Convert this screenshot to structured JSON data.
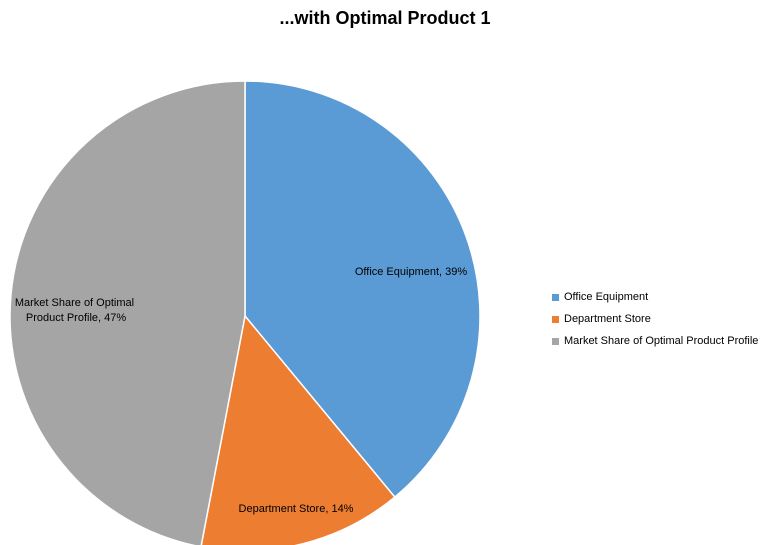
{
  "chart_data": {
    "type": "pie",
    "title": "...with Optimal Product 1",
    "slices": [
      {
        "name": "Office Equipment",
        "value": 39,
        "label": "Office Equipment, 39%",
        "color": "#5B9BD5"
      },
      {
        "name": "Department Store",
        "value": 14,
        "label": "Department Store, 14%",
        "color": "#ED7D31"
      },
      {
        "name": "Market Share of Optimal Product Profile",
        "value": 47,
        "label_lines": [
          "Market Share of Optimal",
          "Product Profile, 47%"
        ],
        "color": "#A5A5A5"
      }
    ],
    "start_angle": "12 o'clock",
    "direction": "clockwise",
    "legend_position": "right"
  }
}
